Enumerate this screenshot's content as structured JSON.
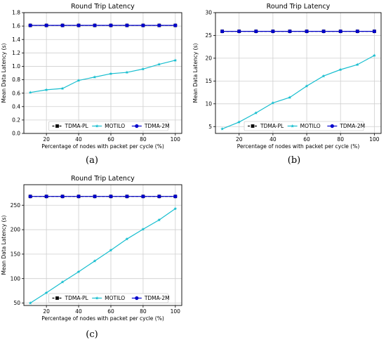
{
  "chart_data": [
    {
      "type": "line",
      "caption": "(a)",
      "title": "Round Trip Latency",
      "xlabel": "Percentage of nodes with packet per cycle (%)",
      "ylabel": "Mean Data Latency (s)",
      "xlim": [
        6,
        104
      ],
      "ylim": [
        0,
        1.8
      ],
      "xticks": [
        20,
        40,
        60,
        80,
        100
      ],
      "yticks": [
        0.0,
        0.2,
        0.4,
        0.6,
        0.8,
        1.0,
        1.2,
        1.4,
        1.6,
        1.8
      ],
      "ytick_labels": [
        "0.0",
        "0.2",
        "0.4",
        "0.6",
        "0.8",
        "1.0",
        "1.2",
        "1.4",
        "1.6",
        "1.8"
      ],
      "grid": true,
      "legend_position": "lower-center",
      "x": [
        10,
        20,
        30,
        40,
        50,
        60,
        70,
        80,
        90,
        100
      ],
      "series": [
        {
          "name": "TDMA-PL",
          "color": "#000000",
          "style": "dashed",
          "marker": "square",
          "values": [
            1.61,
            1.61,
            1.61,
            1.61,
            1.61,
            1.61,
            1.61,
            1.61,
            1.61,
            1.61
          ]
        },
        {
          "name": "MOTILO",
          "color": "#17becf",
          "style": "solid",
          "marker": "star",
          "values": [
            0.61,
            0.65,
            0.67,
            0.79,
            0.84,
            0.89,
            0.91,
            0.96,
            1.03,
            1.09
          ]
        },
        {
          "name": "TDMA-2M",
          "color": "#0000cc",
          "style": "solid",
          "marker": "circle",
          "values": [
            1.61,
            1.61,
            1.61,
            1.61,
            1.61,
            1.61,
            1.61,
            1.61,
            1.61,
            1.61
          ]
        }
      ]
    },
    {
      "type": "line",
      "caption": "(b)",
      "title": "Round Trip Latency",
      "xlabel": "Percentage of nodes with packet per cycle (%)",
      "ylabel": "Mean Data Latency (s)",
      "xlim": [
        6,
        104
      ],
      "ylim": [
        3.5,
        30
      ],
      "xticks": [
        20,
        40,
        60,
        80,
        100
      ],
      "yticks": [
        5,
        10,
        15,
        20,
        25,
        30
      ],
      "ytick_labels": [
        "5",
        "10",
        "15",
        "20",
        "25",
        "30"
      ],
      "grid": true,
      "legend_position": "lower-center",
      "x": [
        10,
        20,
        30,
        40,
        50,
        60,
        70,
        80,
        90,
        100
      ],
      "series": [
        {
          "name": "TDMA-PL",
          "color": "#000000",
          "style": "dashed",
          "marker": "square",
          "values": [
            25.9,
            25.9,
            25.9,
            25.9,
            25.9,
            25.9,
            25.9,
            25.9,
            25.9,
            25.9
          ]
        },
        {
          "name": "MOTILO",
          "color": "#17becf",
          "style": "solid",
          "marker": "star",
          "values": [
            4.5,
            6.0,
            8.0,
            10.2,
            11.4,
            13.9,
            16.1,
            17.5,
            18.6,
            20.6
          ]
        },
        {
          "name": "TDMA-2M",
          "color": "#0000cc",
          "style": "solid",
          "marker": "circle",
          "values": [
            25.9,
            25.9,
            25.9,
            25.9,
            25.9,
            25.9,
            25.9,
            25.9,
            25.9,
            25.9
          ]
        }
      ]
    },
    {
      "type": "line",
      "caption": "(c)",
      "title": "Round Trip Latency",
      "xlabel": "Percentage of nodes with packet per cycle (%)",
      "ylabel": "Mean Data Latency (s)",
      "xlim": [
        6,
        104
      ],
      "ylim": [
        45,
        292
      ],
      "xticks": [
        20,
        40,
        60,
        80,
        100
      ],
      "yticks": [
        50,
        100,
        150,
        200,
        250
      ],
      "ytick_labels": [
        "50",
        "100",
        "150",
        "200",
        "250"
      ],
      "grid": true,
      "legend_position": "lower-center",
      "x": [
        10,
        20,
        30,
        40,
        50,
        60,
        70,
        80,
        90,
        100
      ],
      "series": [
        {
          "name": "TDMA-PL",
          "color": "#000000",
          "style": "dashed",
          "marker": "square",
          "values": [
            268,
            268,
            268,
            268,
            268,
            268,
            268,
            268,
            268,
            268
          ]
        },
        {
          "name": "MOTILO",
          "color": "#17becf",
          "style": "solid",
          "marker": "star",
          "values": [
            50,
            71,
            93,
            114,
            136,
            158,
            181,
            201,
            220,
            243
          ]
        },
        {
          "name": "TDMA-2M",
          "color": "#0000cc",
          "style": "solid",
          "marker": "circle",
          "values": [
            268,
            268,
            268,
            268,
            268,
            268,
            268,
            268,
            268,
            268
          ]
        }
      ]
    }
  ]
}
